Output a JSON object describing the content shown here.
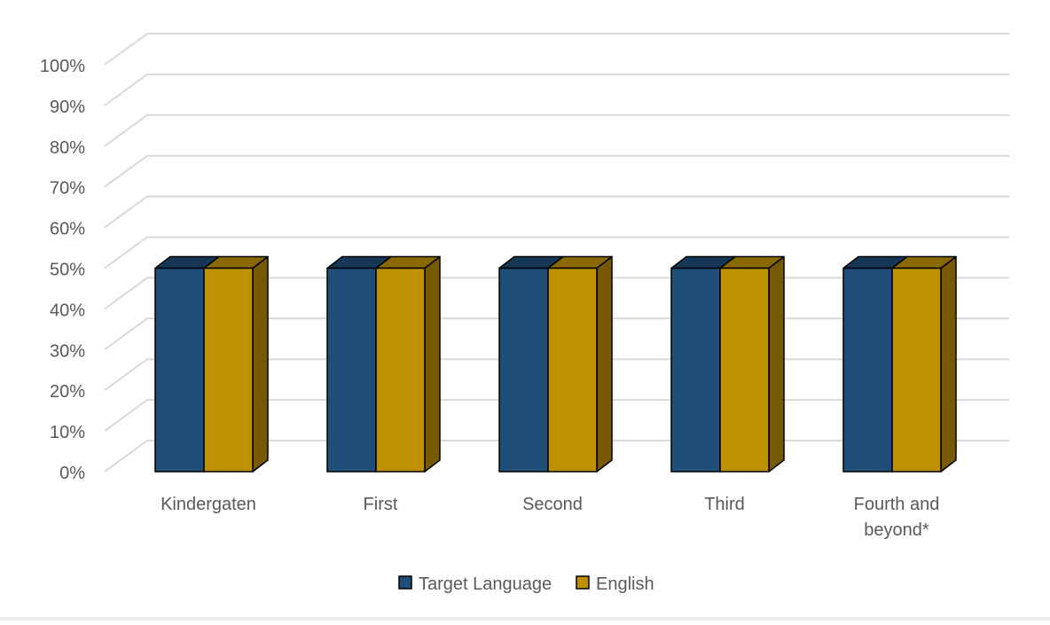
{
  "chart_data": {
    "type": "bar",
    "categories": [
      "Kindergaten",
      "First",
      "Second",
      "Third",
      "Fourth and beyond*"
    ],
    "series": [
      {
        "name": "Target Language",
        "values": [
          50,
          50,
          50,
          50,
          50
        ],
        "color": "#1f4e79"
      },
      {
        "name": "English",
        "values": [
          50,
          50,
          50,
          50,
          50
        ],
        "color": "#bf9000"
      }
    ],
    "ylim": [
      0,
      100
    ],
    "yticks": [
      "0%",
      "10%",
      "20%",
      "30%",
      "40%",
      "50%",
      "60%",
      "70%",
      "80%",
      "90%",
      "100%"
    ],
    "grid": true,
    "legend": "bottom",
    "three_d": true
  }
}
